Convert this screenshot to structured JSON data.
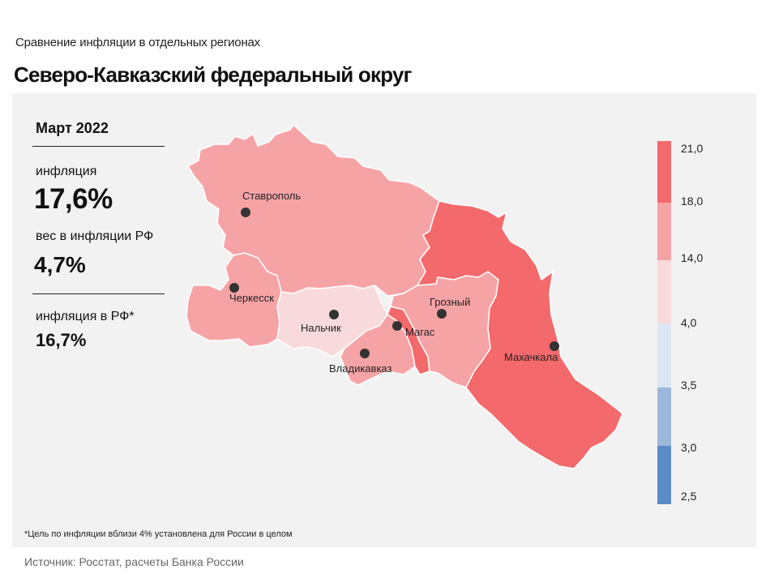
{
  "header": {
    "supertitle": "Сравнение  инфляции  в отдельных  регионах",
    "title": "Северо-Кавказский федеральный округ"
  },
  "stats": {
    "period": "Март 2022",
    "inflation_label": "инфляция",
    "inflation_value": "17,6%",
    "weight_label": "вес в инфляции  РФ",
    "weight_value": "4,7%",
    "rf_label": "инфляция  в РФ*",
    "rf_value": "16,7%"
  },
  "cities": {
    "stavropol": "Ставрополь",
    "cherkessk": "Черкесск",
    "nalchik": "Нальчик",
    "magas": "Магас",
    "grozny": "Грозный",
    "vladikavkaz": "Владикавказ",
    "makhachkala": "Махачкала"
  },
  "legend": {
    "ticks": [
      "21,0",
      "18,0",
      "14,0",
      "4,0",
      "3,5",
      "3,0",
      "2,5"
    ],
    "bins": [
      {
        "from": "18,0",
        "to": "21,0",
        "color": "#f4696b"
      },
      {
        "from": "14,0",
        "to": "18,0",
        "color": "#f6a3a5"
      },
      {
        "from": "4,0",
        "to": "14,0",
        "color": "#f9dadc"
      },
      {
        "from": "3,5",
        "to": "4,0",
        "color": "#dce6f3"
      },
      {
        "from": "3,0",
        "to": "3,5",
        "color": "#9bb7da"
      },
      {
        "from": "2,5",
        "to": "3,0",
        "color": "#5b8bc6"
      }
    ]
  },
  "regions": [
    {
      "name": "Ставропольский край",
      "bin": "14,0–18,0",
      "color": "#f6a3a5"
    },
    {
      "name": "Карачаево-Черкесская Республика",
      "bin": "14,0–18,0",
      "color": "#f6a3a5"
    },
    {
      "name": "Кабардино-Балкарская Республика",
      "bin": "4,0–14,0",
      "color": "#f9dadc"
    },
    {
      "name": "Республика Северная Осетия — Алания",
      "bin": "14,0–18,0",
      "color": "#f6a3a5"
    },
    {
      "name": "Республика Ингушетия",
      "bin": "18,0–21,0",
      "color": "#f4696b"
    },
    {
      "name": "Чеченская Республика",
      "bin": "14,0–18,0",
      "color": "#f6a3a5"
    },
    {
      "name": "Республика Дагестан",
      "bin": "18,0–21,0",
      "color": "#f4696b"
    }
  ],
  "footnote": "*Цель по инфляции вблизи 4% установлена для России в целом",
  "source": "Источник: Росстат, расчеты Банка России"
}
